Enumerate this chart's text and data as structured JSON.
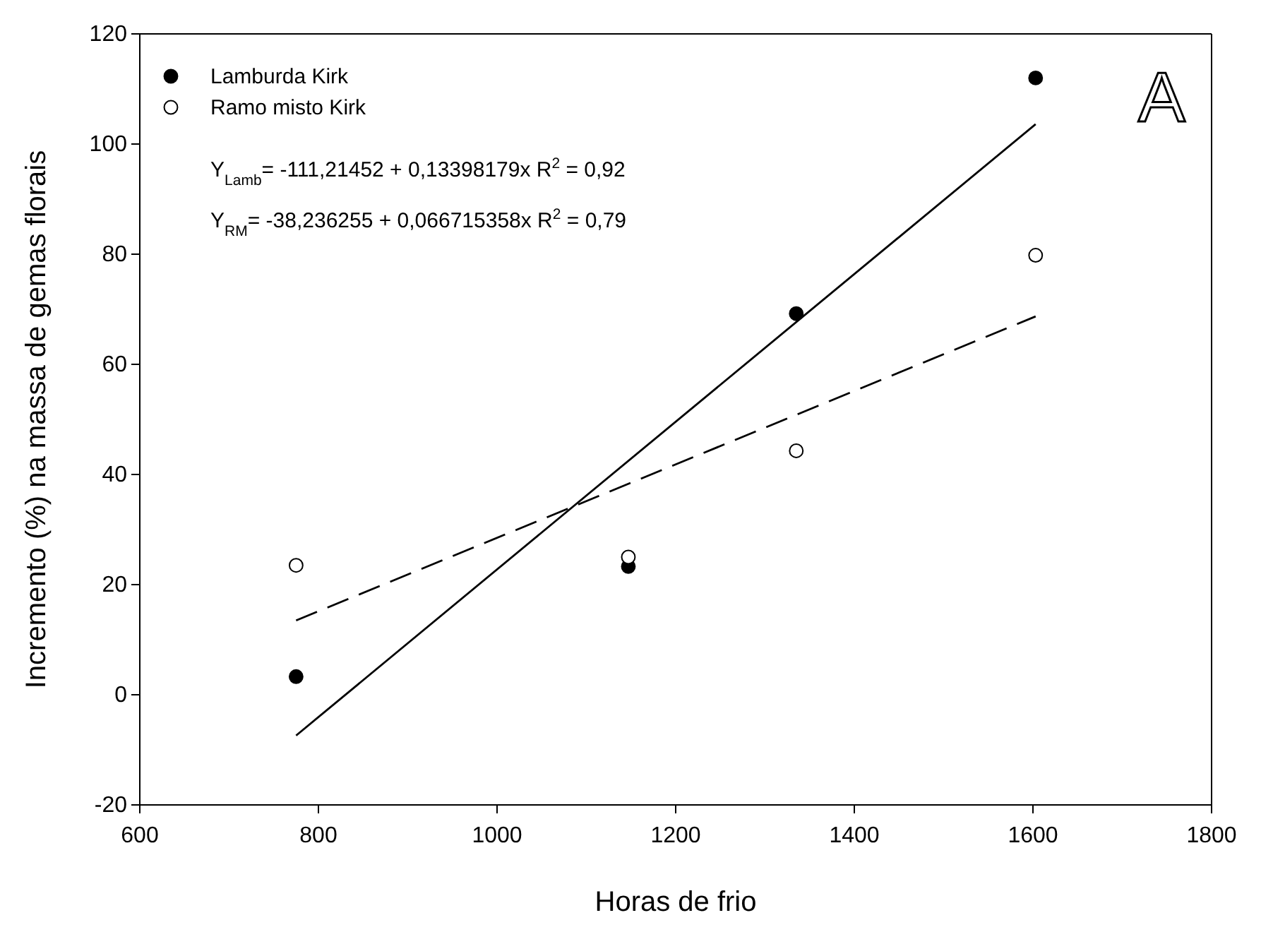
{
  "chart_data": {
    "type": "scatter",
    "xlabel": "Horas de frio",
    "ylabel": "Incremento (%) na massa de gemas florais",
    "xlim": [
      600,
      1800
    ],
    "xticks": [
      600,
      800,
      1000,
      1200,
      1400,
      1600,
      1800
    ],
    "ylim": [
      -20,
      120
    ],
    "yticks": [
      -20,
      0,
      20,
      40,
      60,
      80,
      100,
      120
    ],
    "grid": false,
    "legend": "top left",
    "series": [
      {
        "name": "Lamburda Kirk",
        "color": "#000000",
        "marker": "circle",
        "x": [
          775,
          1147,
          1335,
          1603
        ],
        "values": [
          3.3,
          23.3,
          69.2,
          112
        ]
      },
      {
        "name": "Ramo misto Kirk",
        "color": "#ffffff",
        "marker": "circle",
        "x": [
          775,
          1147,
          1335,
          1603
        ],
        "values": [
          23.5,
          25,
          44.3,
          79.8
        ]
      },
      {
        "type": "line",
        "color": "#000000",
        "line_style": "solid",
        "x": [
          775,
          1603
        ],
        "values": [
          -7.4,
          103.6
        ]
      },
      {
        "type": "line",
        "color": "#000000",
        "line_style": "dashed",
        "x": [
          775,
          1603
        ],
        "values": [
          13.5,
          68.7
        ]
      }
    ],
    "annotations": [
      "Y$_{Lamb}$= -111,21452 + 0,13398179x  R$^{2}$ = 0,92",
      "Y$_{RM}$= -38,236255 + 0,066715358x  R$^{2}$ = 0,79",
      "A"
    ]
  }
}
